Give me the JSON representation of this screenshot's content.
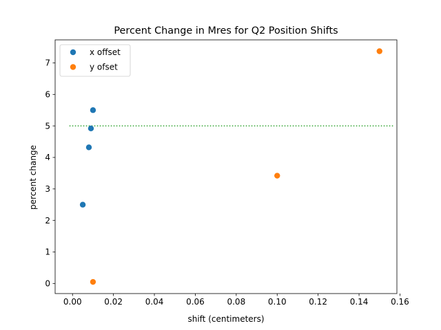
{
  "chart_data": {
    "type": "scatter",
    "title": "Percent Change in Mres for Q2 Position Shifts",
    "xlabel": "shift (centimeters)",
    "ylabel": "percent change",
    "xlim": [
      -0.0085,
      0.1585
    ],
    "ylim": [
      -0.32,
      7.73
    ],
    "xticks": [
      0.0,
      0.02,
      0.04,
      0.06,
      0.08,
      0.1,
      0.12,
      0.14,
      0.16
    ],
    "xtick_labels": [
      "0.00",
      "0.02",
      "0.04",
      "0.06",
      "0.08",
      "0.10",
      "0.12",
      "0.14",
      "0.16"
    ],
    "yticks": [
      0,
      1,
      2,
      3,
      4,
      5,
      6,
      7
    ],
    "ytick_labels": [
      "0",
      "1",
      "2",
      "3",
      "4",
      "5",
      "6",
      "7"
    ],
    "grid": false,
    "legend_position": "upper-left",
    "series": [
      {
        "name": "x offset",
        "color": "#1f77b4",
        "points": [
          [
            0.005,
            2.5
          ],
          [
            0.008,
            4.32
          ],
          [
            0.009,
            4.92
          ],
          [
            0.01,
            5.5
          ]
        ]
      },
      {
        "name": "y ofset",
        "color": "#ff7f0e",
        "points": [
          [
            0.01,
            0.05
          ],
          [
            0.1,
            3.42
          ],
          [
            0.15,
            7.37
          ]
        ]
      }
    ],
    "reference_line": {
      "y": 5.0,
      "x_range": [
        -0.0015,
        0.157
      ],
      "color": "#2ca02c",
      "style": "dotted"
    }
  }
}
